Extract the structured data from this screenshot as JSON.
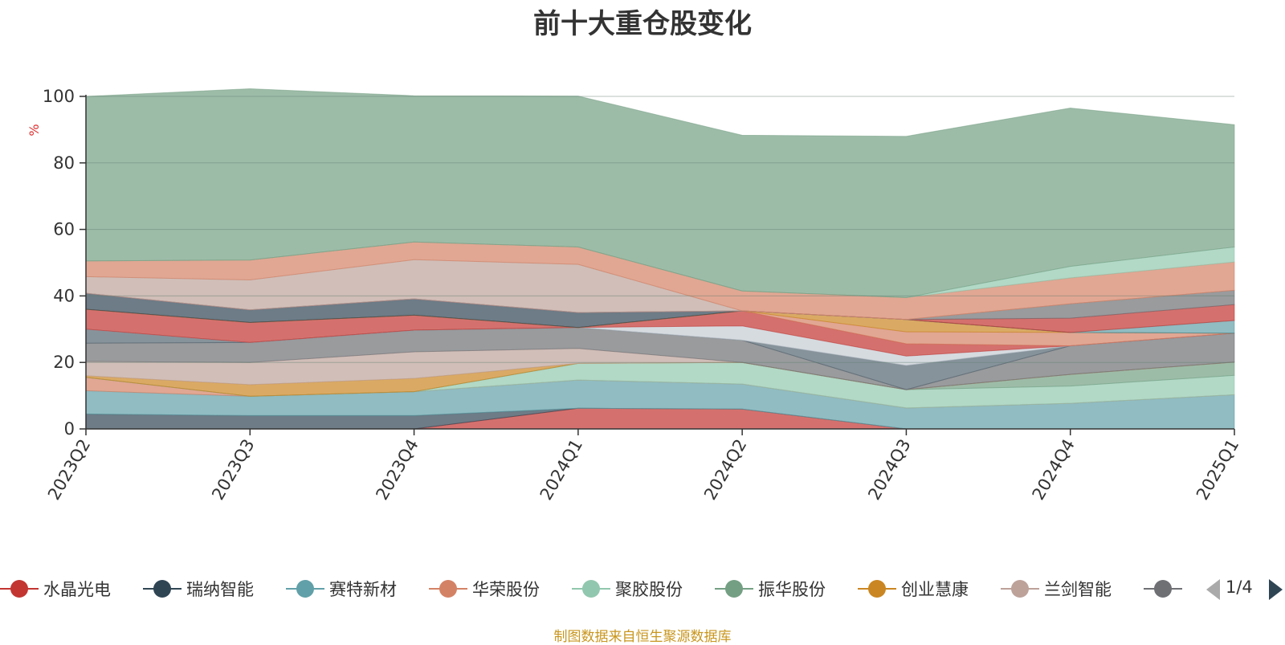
{
  "chart_data": {
    "type": "area",
    "title": "前十大重仓股变化",
    "ylabel": "%",
    "ylim": [
      0,
      100
    ],
    "yticks": [
      0,
      20,
      40,
      60,
      80,
      100
    ],
    "categories": [
      "2023Q2",
      "2023Q3",
      "2023Q4",
      "2024Q1",
      "2024Q2",
      "2024Q3",
      "2024Q4",
      "2025Q1"
    ],
    "stacked": true,
    "grid": true,
    "legend_position": "bottom",
    "legend_page": "1/4",
    "series": [
      {
        "name": "水晶光电",
        "color": "#c23531",
        "values": [
          0,
          0,
          0,
          6.2,
          6,
          0,
          0,
          0
        ]
      },
      {
        "name": "瑞纳智能",
        "color": "#2f4554",
        "values": [
          4.5,
          4,
          4,
          0,
          0,
          0,
          0,
          0
        ]
      },
      {
        "name": "赛特新材",
        "color": "#61a0a8",
        "values": [
          7,
          5.8,
          7.2,
          8.5,
          7.5,
          6.3,
          7.7,
          10.3
        ]
      },
      {
        "name": "华荣股份",
        "color": "#d48265",
        "values": [
          4,
          0,
          0,
          0,
          0,
          0,
          0,
          0
        ]
      },
      {
        "name": "聚胶股份",
        "color": "#91c7ae",
        "values": [
          0,
          0,
          0,
          5,
          6.5,
          5.5,
          5.2,
          5.8
        ]
      },
      {
        "name": "振华股份",
        "color": "#749f83",
        "values": [
          0,
          0,
          0,
          0,
          0,
          0,
          3.5,
          4
        ]
      },
      {
        "name": "创业慧康",
        "color": "#ca8622",
        "values": [
          0.5,
          3.5,
          4,
          0,
          0,
          0,
          0,
          0
        ]
      }
    ],
    "others": [
      {
        "color": "#bda29a",
        "values": [
          4.3,
          6.7,
          8,
          4.5,
          0,
          0,
          0,
          0
        ]
      },
      {
        "color": "#6e7074",
        "values": [
          5.5,
          6,
          6.5,
          6.3,
          6.7,
          0,
          8.6,
          8.7
        ]
      },
      {
        "color": "#546570",
        "values": [
          4.2,
          0,
          0,
          0,
          0,
          7.3,
          0,
          0
        ]
      },
      {
        "color": "#c4ccd3",
        "values": [
          0,
          0,
          0,
          0,
          4.3,
          2.8,
          0,
          0
        ]
      },
      {
        "color": "#c23531",
        "values": [
          6,
          6,
          4.5,
          0,
          4.5,
          3.7,
          0,
          0
        ]
      },
      {
        "color": "#d48265",
        "values": [
          0,
          0,
          0,
          0,
          0,
          3.6,
          4,
          0
        ]
      },
      {
        "color": "#ca8622",
        "values": [
          0,
          0,
          0,
          0,
          0,
          3.7,
          0,
          0
        ]
      },
      {
        "color": "#2f4554",
        "values": [
          4.8,
          3.8,
          4.9,
          4.5,
          0,
          0,
          0,
          0
        ]
      },
      {
        "color": "#61a0a8",
        "values": [
          0,
          0,
          0,
          0,
          0,
          0,
          0,
          3.8
        ]
      },
      {
        "color": "#c23531",
        "values": [
          0,
          0,
          0,
          0,
          0,
          0,
          4.3,
          4.8
        ]
      },
      {
        "color": "#6e7074",
        "values": [
          0,
          0,
          0,
          0,
          0,
          0,
          4.3,
          4.3
        ]
      },
      {
        "color": "#bda29a",
        "values": [
          5,
          9,
          11.8,
          14.5,
          0,
          0,
          0,
          0
        ]
      },
      {
        "color": "#d48265",
        "values": [
          4.7,
          6,
          5.3,
          5.2,
          6,
          6.6,
          7.8,
          8.5
        ]
      },
      {
        "color": "#91c7ae",
        "values": [
          0,
          0,
          0,
          0,
          0,
          0,
          3.5,
          4.5
        ]
      },
      {
        "color": "#749f83",
        "values": [
          49.5,
          51.5,
          44,
          45.4,
          46.8,
          48.5,
          47.6,
          36.8
        ]
      }
    ]
  },
  "legend": {
    "items": [
      {
        "name": "水晶光电",
        "color": "#c23531"
      },
      {
        "name": "瑞纳智能",
        "color": "#2f4554"
      },
      {
        "name": "赛特新材",
        "color": "#61a0a8"
      },
      {
        "name": "华荣股份",
        "color": "#d48265"
      },
      {
        "name": "聚胶股份",
        "color": "#91c7ae"
      },
      {
        "name": "振华股份",
        "color": "#749f83"
      },
      {
        "name": "创业慧康",
        "color": "#ca8622"
      },
      {
        "name": "兰剑智能",
        "color": "#bda29a"
      },
      {
        "name": "",
        "color": "#6e7074"
      }
    ],
    "page": "1/4"
  },
  "source_note": "制图数据来自恒生聚源数据库"
}
